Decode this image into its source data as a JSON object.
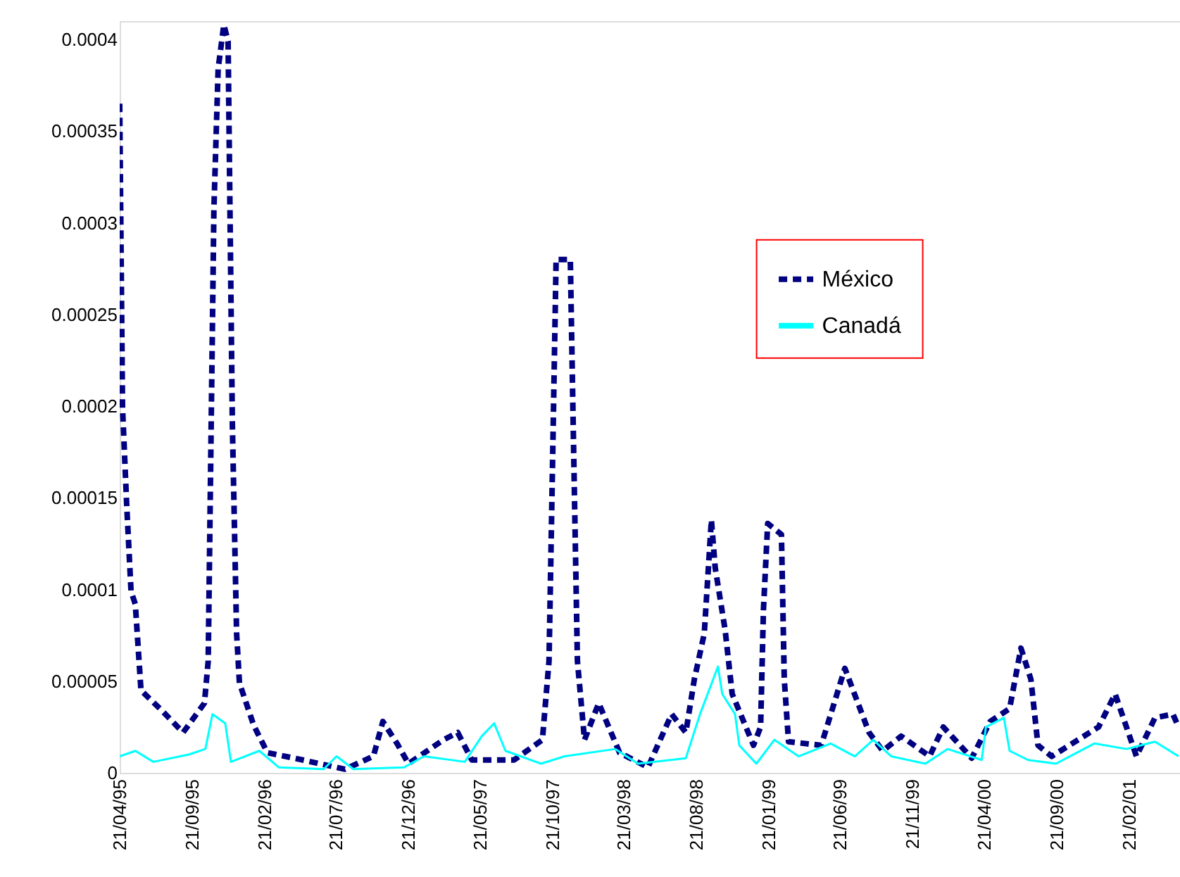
{
  "chart_data": {
    "type": "line",
    "xlim": [
      "1995-04-21",
      "2001-06-08"
    ],
    "ylim": [
      0,
      0.00041
    ],
    "xticks": [
      {
        "value": "1995-04-21",
        "label": "21/04/95"
      },
      {
        "value": "1995-09-21",
        "label": "21/09/95"
      },
      {
        "value": "1996-02-21",
        "label": "21/02/96"
      },
      {
        "value": "1996-07-21",
        "label": "21/07/96"
      },
      {
        "value": "1996-12-21",
        "label": "21/12/96"
      },
      {
        "value": "1997-05-21",
        "label": "21/05/97"
      },
      {
        "value": "1997-10-21",
        "label": "21/10/97"
      },
      {
        "value": "1998-03-21",
        "label": "21/03/98"
      },
      {
        "value": "1998-08-21",
        "label": "21/08/98"
      },
      {
        "value": "1999-01-21",
        "label": "21/01/99"
      },
      {
        "value": "1999-06-21",
        "label": "21/06/99"
      },
      {
        "value": "1999-11-21",
        "label": "21/11/99"
      },
      {
        "value": "2000-04-21",
        "label": "21/04/00"
      },
      {
        "value": "2000-09-21",
        "label": "21/09/00"
      },
      {
        "value": "2001-02-21",
        "label": "21/02/01"
      }
    ],
    "yticks": [
      0,
      {
        "value": 5e-05,
        "label": "0.00005"
      },
      {
        "value": 0.0001,
        "label": "0.0001"
      },
      {
        "value": 0.00015,
        "label": "0.00015"
      },
      {
        "value": 0.0002,
        "label": "0.0002"
      },
      {
        "value": 0.00025,
        "label": "0.00025"
      },
      {
        "value": 0.0003,
        "label": "0.0003"
      },
      {
        "value": 0.00035,
        "label": "0.00035"
      },
      {
        "value": 0.0004,
        "label": "0.0004"
      }
    ],
    "grid": false,
    "legend": "top right",
    "series": [
      {
        "name": "México",
        "type": "line",
        "color": "#000080",
        "line_style": "dashed",
        "x": [
          "1995-04-21",
          "1995-04-27",
          "1995-05-06",
          "1995-05-15",
          "1995-05-24",
          "1995-06-05",
          "1995-07-19",
          "1995-09-02",
          "1995-10-17",
          "1995-10-25",
          "1995-11-06",
          "1995-11-15",
          "1995-11-27",
          "1995-12-06",
          "1995-12-15",
          "1995-12-24",
          "1995-12-30",
          "1996-01-29",
          "1996-02-27",
          "1996-05-12",
          "1996-08-09",
          "1996-10-08",
          "1996-10-28",
          "1996-11-27",
          "1996-12-21",
          "1997-03-05",
          "1997-04-04",
          "1997-05-04",
          "1997-08-01",
          "1997-09-30",
          "1997-10-14",
          "1997-10-23",
          "1997-10-29",
          "1997-11-28",
          "1997-12-04",
          "1997-12-13",
          "1997-12-28",
          "1998-01-27",
          "1998-03-12",
          "1998-05-11",
          "1998-06-30",
          "1998-07-30",
          "1998-08-17",
          "1998-09-07",
          "1998-09-22",
          "1998-09-30",
          "1998-10-21",
          "1998-11-05",
          "1998-12-20",
          "1999-01-04",
          "1999-01-10",
          "1999-01-19",
          "1999-02-17",
          "1999-02-23",
          "1999-03-04",
          "1999-05-12",
          "1999-07-01",
          "1999-08-21",
          "1999-09-19",
          "1999-10-28",
          "1999-12-27",
          "2000-01-25",
          "2000-03-25",
          "2000-05-03",
          "2000-06-13",
          "2000-07-07",
          "2000-07-28",
          "2000-08-12",
          "2000-09-10",
          "2000-12-18",
          "2001-01-22",
          "2001-03-08",
          "2001-04-16",
          "2001-05-24",
          "2001-06-05"
        ],
        "values": [
          0.000365,
          0.000199,
          0.000145,
          9.9e-05,
          9.2e-05,
          4.5e-05,
          3.4e-05,
          2.2e-05,
          3.8e-05,
          6.1e-05,
          0.000307,
          0.000384,
          0.000408,
          0.000399,
          0.000191,
          7.6e-05,
          4.9e-05,
          2.6e-05,
          1.1e-05,
          7e-06,
          2e-06,
          9e-06,
          2.8e-05,
          1.6e-05,
          5e-06,
          1.8e-05,
          2.2e-05,
          7e-06,
          7e-06,
          1.8e-05,
          6.1e-05,
          0.000191,
          0.00028,
          0.00028,
          0.000191,
          6.1e-05,
          1.8e-05,
          3.8e-05,
          1.1e-05,
          3e-06,
          3.2e-05,
          2.2e-05,
          5.1e-05,
          7.6e-05,
          0.000138,
          0.000112,
          7.8e-05,
          4.3e-05,
          1.5e-05,
          2.5e-05,
          8.9e-05,
          0.000136,
          0.00013,
          5.1e-05,
          1.7e-05,
          1.5e-05,
          5.7e-05,
          2.2e-05,
          1.2e-05,
          2e-05,
          9e-06,
          2.5e-05,
          8e-06,
          2.8e-05,
          3.5e-05,
          6.8e-05,
          5.1e-05,
          1.5e-05,
          9e-06,
          2.5e-05,
          4.3e-05,
          9e-06,
          3e-05,
          3.2e-05,
          2.5e-05
        ]
      },
      {
        "name": "Canadá",
        "type": "line",
        "color": "#00ffff",
        "line_style": "solid",
        "x": [
          "1995-04-21",
          "1995-05-24",
          "1995-07-01",
          "1995-09-14",
          "1995-10-19",
          "1995-11-03",
          "1995-11-30",
          "1995-12-12",
          "1996-02-10",
          "1996-03-22",
          "1996-06-25",
          "1996-07-22",
          "1996-08-27",
          "1996-12-12",
          "1997-01-23",
          "1997-04-19",
          "1997-05-25",
          "1997-06-20",
          "1997-07-14",
          "1997-09-27",
          "1997-11-16",
          "1998-03-03",
          "1998-04-20",
          "1998-07-30",
          "1998-08-29",
          "1998-10-06",
          "1998-10-15",
          "1998-11-11",
          "1998-11-20",
          "1998-12-26",
          "1999-02-02",
          "1999-03-25",
          "1999-06-01",
          "1999-07-22",
          "1999-08-30",
          "1999-10-07",
          "1999-12-18",
          "2000-02-03",
          "2000-04-15",
          "2000-04-24",
          "2000-06-01",
          "2000-06-13",
          "2000-07-22",
          "2000-09-19",
          "2000-12-09",
          "2001-02-15",
          "2001-04-16",
          "2001-06-05"
        ],
        "values": [
          9e-06,
          1.2e-05,
          6e-06,
          1e-05,
          1.3e-05,
          3.2e-05,
          2.7e-05,
          6e-06,
          1.2e-05,
          3e-06,
          2e-06,
          9e-06,
          2e-06,
          3e-06,
          9e-06,
          6e-06,
          2e-05,
          2.7e-05,
          1.2e-05,
          5e-06,
          9e-06,
          1.3e-05,
          5e-06,
          8e-06,
          3.2e-05,
          5.8e-05,
          4.3e-05,
          3.2e-05,
          1.5e-05,
          5e-06,
          1.8e-05,
          9e-06,
          1.6e-05,
          9e-06,
          1.8e-05,
          9e-06,
          5e-06,
          1.3e-05,
          7e-06,
          2.5e-05,
          3e-05,
          1.2e-05,
          7e-06,
          5e-06,
          1.6e-05,
          1.3e-05,
          1.7e-05,
          9e-06
        ]
      }
    ]
  }
}
